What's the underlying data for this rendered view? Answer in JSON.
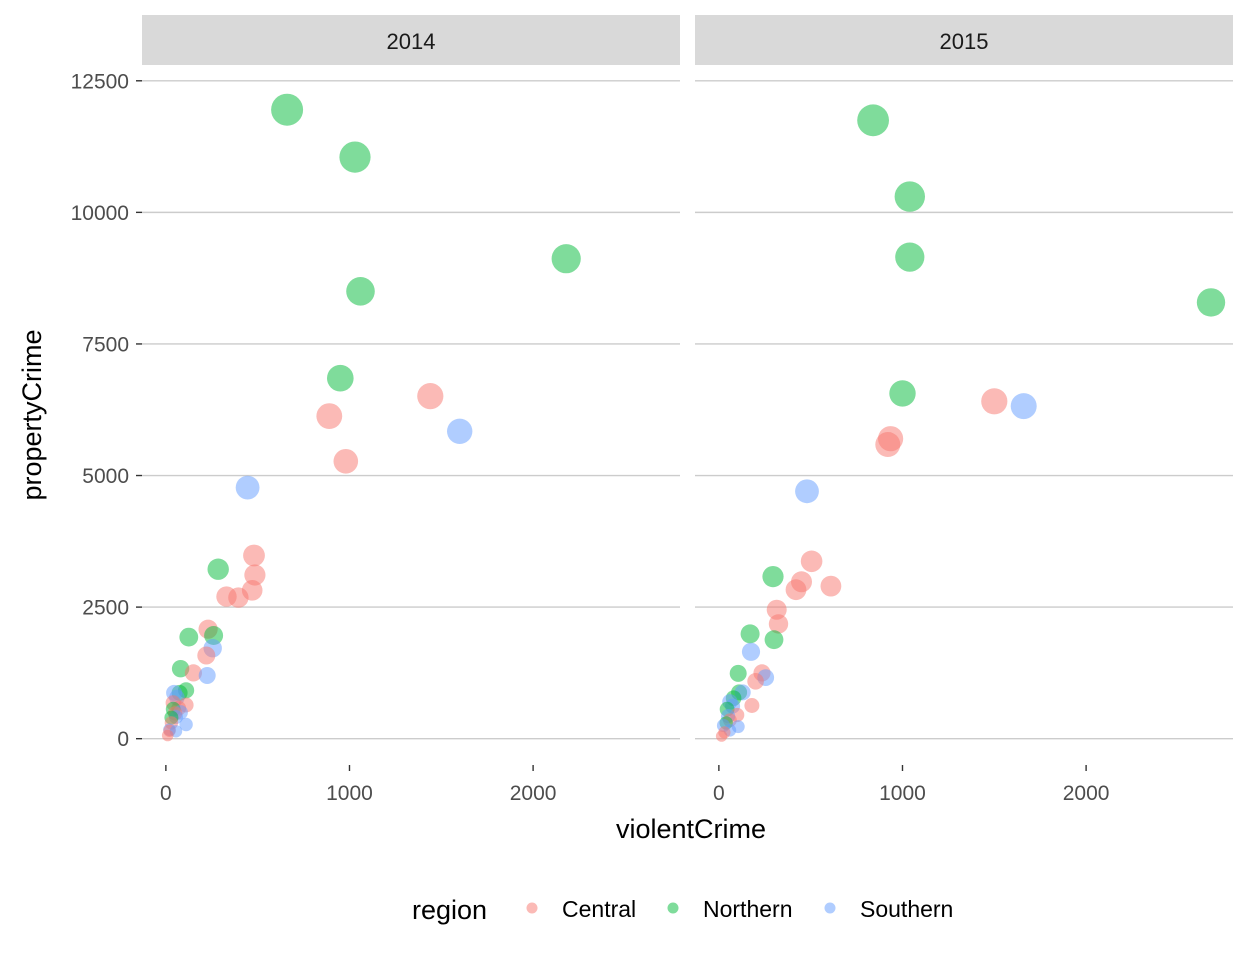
{
  "chart_data": {
    "type": "scatter",
    "xlabel": "violentCrime",
    "ylabel": "propertyCrime",
    "xlim": [
      -130,
      2800
    ],
    "ylim": [
      -500,
      12800
    ],
    "x_ticks": [
      0,
      1000,
      2000
    ],
    "y_ticks": [
      0,
      2500,
      5000,
      7500,
      10000,
      12500
    ],
    "grid": "horizontal major lines only",
    "legend": {
      "title": "region",
      "position": "bottom",
      "entries": [
        {
          "name": "Central",
          "color": "#F8766D"
        },
        {
          "name": "Northern",
          "color": "#00BA38"
        },
        {
          "name": "Southern",
          "color": "#619CFF"
        }
      ]
    },
    "point_alpha": 0.5,
    "size_encoding": "point size increases with propertyCrime",
    "panels": [
      {
        "label": "2014",
        "points": [
          {
            "x": 660,
            "y": 11950,
            "region": "Northern"
          },
          {
            "x": 1030,
            "y": 11050,
            "region": "Northern"
          },
          {
            "x": 2180,
            "y": 9120,
            "region": "Northern"
          },
          {
            "x": 1060,
            "y": 8500,
            "region": "Northern"
          },
          {
            "x": 950,
            "y": 6850,
            "region": "Northern"
          },
          {
            "x": 285,
            "y": 3220,
            "region": "Northern"
          },
          {
            "x": 260,
            "y": 1960,
            "region": "Northern"
          },
          {
            "x": 125,
            "y": 1930,
            "region": "Northern"
          },
          {
            "x": 80,
            "y": 1330,
            "region": "Northern"
          },
          {
            "x": 110,
            "y": 920,
            "region": "Northern"
          },
          {
            "x": 75,
            "y": 870,
            "region": "Northern"
          },
          {
            "x": 40,
            "y": 560,
            "region": "Northern"
          },
          {
            "x": 30,
            "y": 400,
            "region": "Northern"
          },
          {
            "x": 1440,
            "y": 6510,
            "region": "Central"
          },
          {
            "x": 890,
            "y": 6130,
            "region": "Central"
          },
          {
            "x": 980,
            "y": 5270,
            "region": "Central"
          },
          {
            "x": 480,
            "y": 3480,
            "region": "Central"
          },
          {
            "x": 485,
            "y": 3110,
            "region": "Central"
          },
          {
            "x": 470,
            "y": 2820,
            "region": "Central"
          },
          {
            "x": 330,
            "y": 2700,
            "region": "Central"
          },
          {
            "x": 395,
            "y": 2680,
            "region": "Central"
          },
          {
            "x": 230,
            "y": 2080,
            "region": "Central"
          },
          {
            "x": 220,
            "y": 1580,
            "region": "Central"
          },
          {
            "x": 150,
            "y": 1250,
            "region": "Central"
          },
          {
            "x": 110,
            "y": 640,
            "region": "Central"
          },
          {
            "x": 70,
            "y": 580,
            "region": "Central"
          },
          {
            "x": 40,
            "y": 680,
            "region": "Central"
          },
          {
            "x": 50,
            "y": 480,
            "region": "Central"
          },
          {
            "x": 30,
            "y": 300,
            "region": "Central"
          },
          {
            "x": 20,
            "y": 150,
            "region": "Central"
          },
          {
            "x": 10,
            "y": 60,
            "region": "Central"
          },
          {
            "x": 1600,
            "y": 5840,
            "region": "Southern"
          },
          {
            "x": 445,
            "y": 4770,
            "region": "Southern"
          },
          {
            "x": 255,
            "y": 1720,
            "region": "Southern"
          },
          {
            "x": 225,
            "y": 1200,
            "region": "Southern"
          },
          {
            "x": 45,
            "y": 870,
            "region": "Southern"
          },
          {
            "x": 60,
            "y": 780,
            "region": "Southern"
          },
          {
            "x": 80,
            "y": 500,
            "region": "Southern"
          },
          {
            "x": 55,
            "y": 410,
            "region": "Southern"
          },
          {
            "x": 110,
            "y": 270,
            "region": "Southern"
          },
          {
            "x": 55,
            "y": 140,
            "region": "Southern"
          },
          {
            "x": 20,
            "y": 170,
            "region": "Southern"
          }
        ]
      },
      {
        "label": "2015",
        "points": [
          {
            "x": 840,
            "y": 11750,
            "region": "Northern"
          },
          {
            "x": 1040,
            "y": 10300,
            "region": "Northern"
          },
          {
            "x": 1040,
            "y": 9150,
            "region": "Northern"
          },
          {
            "x": 2680,
            "y": 8290,
            "region": "Northern"
          },
          {
            "x": 1000,
            "y": 6560,
            "region": "Northern"
          },
          {
            "x": 295,
            "y": 3080,
            "region": "Northern"
          },
          {
            "x": 170,
            "y": 1990,
            "region": "Northern"
          },
          {
            "x": 300,
            "y": 1880,
            "region": "Northern"
          },
          {
            "x": 105,
            "y": 1240,
            "region": "Northern"
          },
          {
            "x": 110,
            "y": 880,
            "region": "Northern"
          },
          {
            "x": 80,
            "y": 770,
            "region": "Northern"
          },
          {
            "x": 45,
            "y": 560,
            "region": "Northern"
          },
          {
            "x": 40,
            "y": 300,
            "region": "Northern"
          },
          {
            "x": 1500,
            "y": 6410,
            "region": "Central"
          },
          {
            "x": 935,
            "y": 5700,
            "region": "Central"
          },
          {
            "x": 920,
            "y": 5590,
            "region": "Central"
          },
          {
            "x": 505,
            "y": 3370,
            "region": "Central"
          },
          {
            "x": 450,
            "y": 2980,
            "region": "Central"
          },
          {
            "x": 610,
            "y": 2900,
            "region": "Central"
          },
          {
            "x": 420,
            "y": 2830,
            "region": "Central"
          },
          {
            "x": 315,
            "y": 2450,
            "region": "Central"
          },
          {
            "x": 325,
            "y": 2180,
            "region": "Central"
          },
          {
            "x": 235,
            "y": 1250,
            "region": "Central"
          },
          {
            "x": 200,
            "y": 1090,
            "region": "Central"
          },
          {
            "x": 180,
            "y": 630,
            "region": "Central"
          },
          {
            "x": 100,
            "y": 450,
            "region": "Central"
          },
          {
            "x": 60,
            "y": 350,
            "region": "Central"
          },
          {
            "x": 30,
            "y": 120,
            "region": "Central"
          },
          {
            "x": 15,
            "y": 50,
            "region": "Central"
          },
          {
            "x": 1660,
            "y": 6320,
            "region": "Southern"
          },
          {
            "x": 480,
            "y": 4700,
            "region": "Southern"
          },
          {
            "x": 175,
            "y": 1650,
            "region": "Southern"
          },
          {
            "x": 255,
            "y": 1160,
            "region": "Southern"
          },
          {
            "x": 130,
            "y": 880,
            "region": "Southern"
          },
          {
            "x": 60,
            "y": 700,
            "region": "Southern"
          },
          {
            "x": 75,
            "y": 620,
            "region": "Southern"
          },
          {
            "x": 50,
            "y": 430,
            "region": "Southern"
          },
          {
            "x": 105,
            "y": 230,
            "region": "Southern"
          },
          {
            "x": 60,
            "y": 160,
            "region": "Southern"
          },
          {
            "x": 25,
            "y": 250,
            "region": "Southern"
          }
        ]
      }
    ]
  }
}
